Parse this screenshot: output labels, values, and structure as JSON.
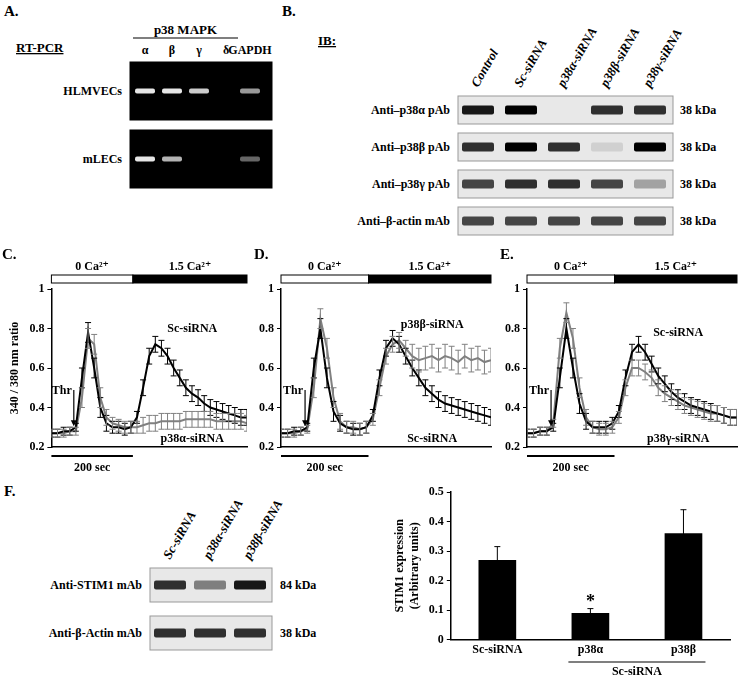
{
  "panels": {
    "A": {
      "label": "A.",
      "method": "RT-PCR",
      "group": {
        "label": "p38 MAPK",
        "lanes": [
          "α",
          "β",
          "γ",
          "δ"
        ]
      },
      "lanes": [
        "α",
        "β",
        "γ",
        "δ",
        "GAPDH"
      ],
      "rows": [
        {
          "name": "HLMVECs",
          "bands": [
            0.9,
            0.9,
            0.8,
            0,
            0.6
          ]
        },
        {
          "name": "mLECs",
          "bands": [
            0.9,
            0.7,
            0,
            0,
            0.4
          ]
        }
      ]
    },
    "B": {
      "label": "B.",
      "method": "IB:",
      "lanes": [
        "Control",
        "Sc-siRNA",
        "p38α-siRNA",
        "p38β-siRNA",
        "p38γ-siRNA"
      ],
      "rows": [
        {
          "name": "Anti–p38α pAb",
          "size": "38 kDa",
          "bands": [
            0.9,
            1,
            0,
            0.8,
            0.8
          ]
        },
        {
          "name": "Anti–p38β pAb",
          "size": "38 kDa",
          "bands": [
            0.8,
            1,
            0.8,
            0.1,
            1
          ]
        },
        {
          "name": "Anti–p38γ pAb",
          "size": "38 kDa",
          "bands": [
            0.7,
            0.8,
            0.8,
            0.7,
            0.3
          ]
        },
        {
          "name": "Anti–β-actin mAb",
          "size": "38 kDa",
          "bands": [
            0.7,
            0.7,
            0.7,
            0.7,
            0.7
          ]
        }
      ]
    },
    "F": {
      "label": "F.",
      "lanes": [
        "Sc-siRNA",
        "p38α-siRNA",
        "p38β-siRNA"
      ],
      "rows": [
        {
          "name": "Anti-STIM1 mAb",
          "size": "84 kDa",
          "bands": [
            0.8,
            0.45,
            0.9
          ]
        },
        {
          "name": "Anti-β-Actin mAb",
          "size": "38 kDa",
          "bands": [
            0.8,
            0.8,
            0.8
          ]
        }
      ]
    }
  },
  "chart_data": [
    {
      "label": "C.",
      "type": "line",
      "y_label": "340 / 380 nm ratio",
      "x": [
        0,
        15,
        30,
        45,
        60,
        75,
        90,
        105,
        120,
        135,
        150,
        165,
        180,
        195,
        210,
        225,
        240,
        255,
        270,
        285,
        300,
        315,
        330,
        345,
        360,
        375,
        390,
        405,
        420,
        435,
        450,
        465,
        480
      ],
      "xlim": [
        0,
        480
      ],
      "ylim": [
        0.2,
        1
      ],
      "yticks": [
        0.2,
        0.4,
        0.6,
        0.8,
        1
      ],
      "tick_labels": "y",
      "phases": [
        {
          "label": "0 Ca²⁺",
          "start": 0,
          "end": 200
        },
        {
          "label": "1.5 Ca²⁺",
          "start": 200,
          "end": 480
        }
      ],
      "annotations": [
        {
          "text": "Thr",
          "x": 55
        }
      ],
      "scale_bar": {
        "label": "200 sec",
        "length": 200
      },
      "series": [
        {
          "name": "Sc-siRNA",
          "color": "#000000",
          "values": [
            0.27,
            0.27,
            0.28,
            0.28,
            0.3,
            0.55,
            0.78,
            0.6,
            0.4,
            0.32,
            0.3,
            0.3,
            0.29,
            0.3,
            0.35,
            0.5,
            0.66,
            0.72,
            0.7,
            0.66,
            0.6,
            0.55,
            0.5,
            0.47,
            0.45,
            0.42,
            0.4,
            0.39,
            0.38,
            0.37,
            0.36,
            0.35,
            0.35
          ],
          "errors": [
            0.02,
            0.02,
            0.02,
            0.02,
            0.02,
            0.05,
            0.05,
            0.05,
            0.05,
            0.04,
            0.03,
            0.03,
            0.03,
            0.03,
            0.03,
            0.04,
            0.04,
            0.04,
            0.04,
            0.04,
            0.04,
            0.04,
            0.04,
            0.04,
            0.04,
            0.04,
            0.04,
            0.04,
            0.04,
            0.04,
            0.04,
            0.04,
            0.04
          ]
        },
        {
          "name": "p38α-siRNA",
          "color": "#808080",
          "values": [
            0.27,
            0.27,
            0.27,
            0.28,
            0.28,
            0.45,
            0.75,
            0.72,
            0.45,
            0.35,
            0.32,
            0.31,
            0.3,
            0.3,
            0.3,
            0.31,
            0.32,
            0.32,
            0.33,
            0.33,
            0.33,
            0.33,
            0.34,
            0.34,
            0.34,
            0.34,
            0.34,
            0.33,
            0.33,
            0.33,
            0.33,
            0.33,
            0.32
          ],
          "errors": [
            0.02,
            0.02,
            0.02,
            0.02,
            0.02,
            0.05,
            0.05,
            0.05,
            0.05,
            0.04,
            0.03,
            0.03,
            0.03,
            0.03,
            0.03,
            0.04,
            0.04,
            0.04,
            0.04,
            0.04,
            0.04,
            0.04,
            0.04,
            0.04,
            0.04,
            0.04,
            0.04,
            0.04,
            0.04,
            0.04,
            0.04,
            0.04,
            0.04
          ]
        }
      ]
    },
    {
      "label": "D.",
      "type": "line",
      "x": [
        0,
        15,
        30,
        45,
        60,
        75,
        90,
        105,
        120,
        135,
        150,
        165,
        180,
        195,
        210,
        225,
        240,
        255,
        270,
        285,
        300,
        315,
        330,
        345,
        360,
        375,
        390,
        405,
        420,
        435,
        450,
        465,
        480
      ],
      "xlim": [
        0,
        480
      ],
      "ylim": [
        0.2,
        1
      ],
      "yticks": [
        0.2,
        0.4,
        0.6,
        0.8,
        1
      ],
      "tick_labels": "y",
      "phases": [
        {
          "label": "0 Ca²⁺",
          "start": 0,
          "end": 200
        },
        {
          "label": "1.5 Ca²⁺",
          "start": 200,
          "end": 480
        }
      ],
      "annotations": [
        {
          "text": "Thr",
          "x": 55
        }
      ],
      "scale_bar": {
        "label": "200 sec",
        "length": 200
      },
      "series": [
        {
          "name": "Sc-siRNA",
          "color": "#000000",
          "values": [
            0.27,
            0.27,
            0.28,
            0.28,
            0.3,
            0.6,
            0.8,
            0.55,
            0.38,
            0.32,
            0.3,
            0.29,
            0.29,
            0.3,
            0.36,
            0.55,
            0.7,
            0.75,
            0.72,
            0.66,
            0.6,
            0.55,
            0.5,
            0.47,
            0.44,
            0.42,
            0.41,
            0.4,
            0.39,
            0.38,
            0.37,
            0.36,
            0.35
          ],
          "errors": [
            0.02,
            0.02,
            0.02,
            0.02,
            0.02,
            0.05,
            0.05,
            0.05,
            0.05,
            0.04,
            0.03,
            0.03,
            0.03,
            0.03,
            0.03,
            0.04,
            0.04,
            0.04,
            0.04,
            0.04,
            0.04,
            0.04,
            0.04,
            0.04,
            0.04,
            0.04,
            0.04,
            0.04,
            0.04,
            0.04,
            0.04,
            0.04,
            0.04
          ]
        },
        {
          "name": "p38β-siRNA",
          "color": "#808080",
          "values": [
            0.27,
            0.27,
            0.27,
            0.28,
            0.29,
            0.5,
            0.85,
            0.7,
            0.45,
            0.33,
            0.3,
            0.3,
            0.29,
            0.3,
            0.34,
            0.5,
            0.66,
            0.72,
            0.74,
            0.7,
            0.66,
            0.64,
            0.65,
            0.66,
            0.64,
            0.66,
            0.65,
            0.63,
            0.66,
            0.64,
            0.65,
            0.63,
            0.64
          ],
          "errors": [
            0.02,
            0.02,
            0.02,
            0.02,
            0.02,
            0.05,
            0.05,
            0.05,
            0.05,
            0.04,
            0.03,
            0.03,
            0.03,
            0.03,
            0.03,
            0.04,
            0.04,
            0.04,
            0.04,
            0.04,
            0.06,
            0.06,
            0.06,
            0.06,
            0.06,
            0.06,
            0.06,
            0.06,
            0.06,
            0.06,
            0.06,
            0.06,
            0.06
          ]
        }
      ]
    },
    {
      "label": "E.",
      "type": "line",
      "x": [
        0,
        15,
        30,
        45,
        60,
        75,
        90,
        105,
        120,
        135,
        150,
        165,
        180,
        195,
        210,
        225,
        240,
        255,
        270,
        285,
        300,
        315,
        330,
        345,
        360,
        375,
        390,
        405,
        420,
        435,
        450,
        465,
        480
      ],
      "xlim": [
        0,
        480
      ],
      "ylim": [
        0.2,
        1
      ],
      "yticks": [
        0.2,
        0.4,
        0.6,
        0.8,
        1
      ],
      "tick_labels": "y",
      "phases": [
        {
          "label": "0 Ca²⁺",
          "start": 0,
          "end": 200
        },
        {
          "label": "1.5 Ca²⁺",
          "start": 200,
          "end": 480
        }
      ],
      "annotations": [
        {
          "text": "Thr",
          "x": 55
        }
      ],
      "scale_bar": {
        "label": "200 sec",
        "length": 200
      },
      "series": [
        {
          "name": "Sc-siRNA",
          "color": "#000000",
          "values": [
            0.27,
            0.27,
            0.28,
            0.28,
            0.3,
            0.55,
            0.8,
            0.6,
            0.42,
            0.33,
            0.3,
            0.3,
            0.3,
            0.32,
            0.38,
            0.55,
            0.68,
            0.72,
            0.68,
            0.62,
            0.56,
            0.52,
            0.48,
            0.45,
            0.43,
            0.41,
            0.4,
            0.39,
            0.38,
            0.37,
            0.36,
            0.35,
            0.35
          ],
          "errors": [
            0.02,
            0.02,
            0.02,
            0.02,
            0.02,
            0.05,
            0.05,
            0.05,
            0.05,
            0.04,
            0.03,
            0.03,
            0.03,
            0.03,
            0.03,
            0.04,
            0.04,
            0.04,
            0.04,
            0.04,
            0.04,
            0.04,
            0.04,
            0.04,
            0.04,
            0.04,
            0.04,
            0.04,
            0.04,
            0.04,
            0.04,
            0.04,
            0.04
          ]
        },
        {
          "name": "p38γ-siRNA",
          "color": "#808080",
          "values": [
            0.27,
            0.27,
            0.28,
            0.28,
            0.32,
            0.7,
            0.88,
            0.75,
            0.5,
            0.35,
            0.3,
            0.29,
            0.29,
            0.3,
            0.35,
            0.5,
            0.6,
            0.6,
            0.58,
            0.55,
            0.5,
            0.47,
            0.45,
            0.43,
            0.41,
            0.4,
            0.39,
            0.38,
            0.37,
            0.37,
            0.36,
            0.35,
            0.35
          ],
          "errors": [
            0.02,
            0.02,
            0.02,
            0.02,
            0.02,
            0.05,
            0.05,
            0.05,
            0.05,
            0.04,
            0.03,
            0.03,
            0.03,
            0.03,
            0.03,
            0.04,
            0.04,
            0.04,
            0.04,
            0.04,
            0.04,
            0.04,
            0.04,
            0.04,
            0.04,
            0.04,
            0.04,
            0.04,
            0.04,
            0.04,
            0.04,
            0.04,
            0.04
          ]
        }
      ]
    },
    {
      "type": "bar",
      "y_label": [
        "STIM1 expression",
        "(Arbitrary units)"
      ],
      "categories": [
        "Sc-siRNA",
        "p38α",
        "p38β"
      ],
      "groups": [
        {
          "label": "Sc-siRNA",
          "members": [
            "p38α",
            "p38β"
          ]
        }
      ],
      "values": [
        0.27,
        0.09,
        0.36
      ],
      "errors": [
        0.045,
        0.015,
        0.08
      ],
      "color": "#000000",
      "ylim": [
        0,
        0.5
      ],
      "yticks": [
        0,
        0.1,
        0.2,
        0.3,
        0.4,
        0.5
      ],
      "annotations": [
        {
          "category": "p38α",
          "text": "*"
        }
      ]
    }
  ]
}
